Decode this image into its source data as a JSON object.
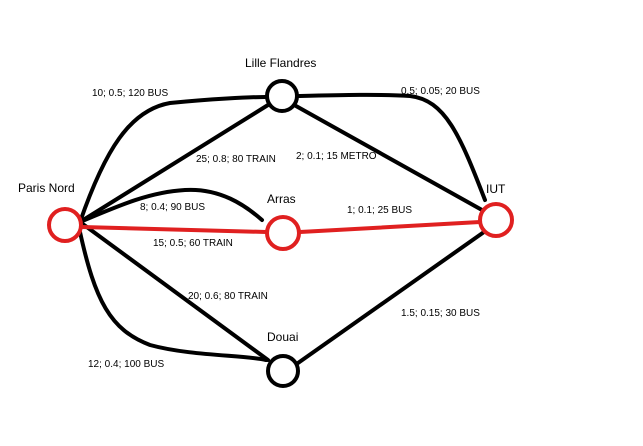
{
  "colors": {
    "background": "#ffffff",
    "default_edge": "#000000",
    "highlight": "#e02020"
  },
  "nodes": [
    {
      "id": "paris-nord",
      "label": "Paris Nord",
      "highlighted": true
    },
    {
      "id": "lille-flandres",
      "label": "Lille Flandres",
      "highlighted": false
    },
    {
      "id": "arras",
      "label": "Arras",
      "highlighted": true
    },
    {
      "id": "iut",
      "label": "IUT",
      "highlighted": true
    },
    {
      "id": "douai",
      "label": "Douai",
      "highlighted": false
    }
  ],
  "edges": [
    {
      "id": "pn-lf-bus",
      "from": "Paris Nord",
      "to": "Lille Flandres",
      "label": "10; 0.5; 120 BUS",
      "highlighted": false
    },
    {
      "id": "pn-lf-train",
      "from": "Paris Nord",
      "to": "Lille Flandres",
      "label": "25; 0.8; 80 TRAIN",
      "highlighted": false
    },
    {
      "id": "pn-arras-bus",
      "from": "Paris Nord",
      "to": "Arras",
      "label": "8; 0.4; 90 BUS",
      "highlighted": false
    },
    {
      "id": "pn-arras-train",
      "from": "Paris Nord",
      "to": "Arras",
      "label": "15; 0.5; 60 TRAIN",
      "highlighted": true
    },
    {
      "id": "arras-iut-bus",
      "from": "Arras",
      "to": "IUT",
      "label": "1; 0.1; 25 BUS",
      "highlighted": true
    },
    {
      "id": "lf-iut-bus",
      "from": "Lille Flandres",
      "to": "IUT",
      "label": "0.5; 0.05; 20 BUS",
      "highlighted": false
    },
    {
      "id": "lf-iut-metro",
      "from": "Lille Flandres",
      "to": "IUT",
      "label": "2; 0.1; 15 METRO",
      "highlighted": false
    },
    {
      "id": "pn-douai-train",
      "from": "Paris Nord",
      "to": "Douai",
      "label": "20; 0.6; 80 TRAIN",
      "highlighted": false
    },
    {
      "id": "pn-douai-bus",
      "from": "Paris Nord",
      "to": "Douai",
      "label": "12; 0.4; 100 BUS",
      "highlighted": false
    },
    {
      "id": "douai-iut-bus",
      "from": "Douai",
      "to": "IUT",
      "label": "1.5; 0.15; 30 BUS",
      "highlighted": false
    }
  ]
}
